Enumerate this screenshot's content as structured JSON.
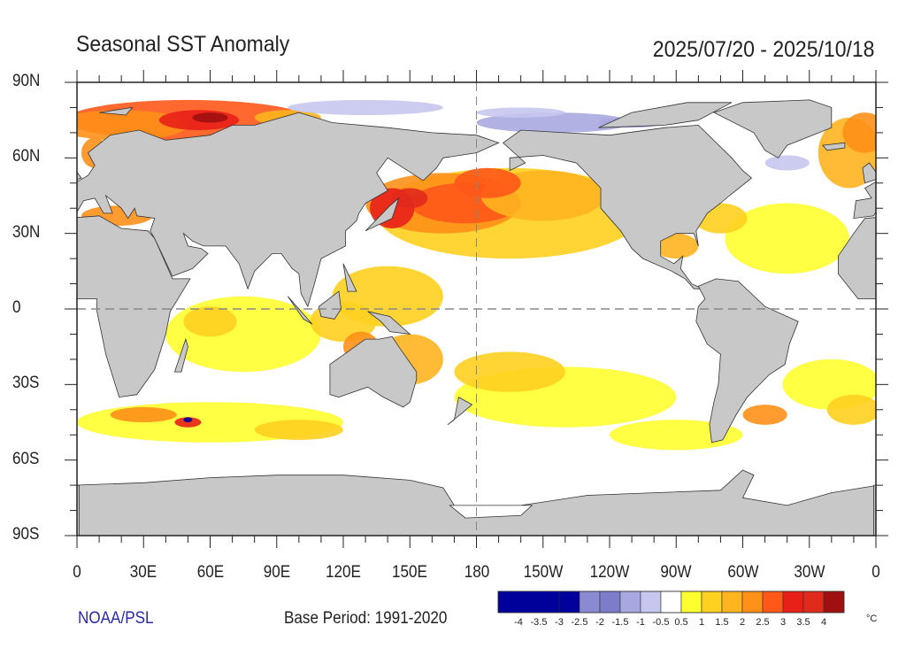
{
  "header": {
    "title": "Seasonal SST Anomaly",
    "date_range": "2025/07/20 - 2025/10/18"
  },
  "map": {
    "projection": "cylindrical equidistant",
    "lon_range": [
      0,
      360
    ],
    "lat_range": [
      -90,
      90
    ],
    "x_tick_labels": [
      "0",
      "30E",
      "60E",
      "90E",
      "120E",
      "150E",
      "180",
      "150W",
      "120W",
      "90W",
      "60W",
      "30W",
      "0"
    ],
    "y_tick_labels": [
      "90N",
      "60N",
      "30N",
      "0",
      "30S",
      "60S",
      "90S"
    ],
    "reference_lines": [
      "equator",
      "180 meridian"
    ],
    "land_color": "#c8c8c8",
    "ocean_no_anomaly_color": "#ffffff"
  },
  "colorbar": {
    "labels": [
      "-4",
      "-3.5",
      "-3",
      "-2.5",
      "-2",
      "-1.5",
      "-1",
      "-0.5",
      "0.5",
      "1",
      "1.5",
      "2",
      "2.5",
      "3",
      "3.5",
      "4"
    ],
    "colors": [
      "#00009a",
      "#00009a",
      "#00009a",
      "#00009a",
      "#8a8ad2",
      "#7c7cca",
      "#a8a8e0",
      "#c6c6ee",
      "#ffffff",
      "#ffff30",
      "#ffd020",
      "#ffb420",
      "#ff9018",
      "#ff5818",
      "#e82018",
      "#e02a1c",
      "#a01010"
    ],
    "units": "°C"
  },
  "footer": {
    "credit": "NOAA/PSL",
    "base_period": "Base Period: 1991-2020"
  }
}
